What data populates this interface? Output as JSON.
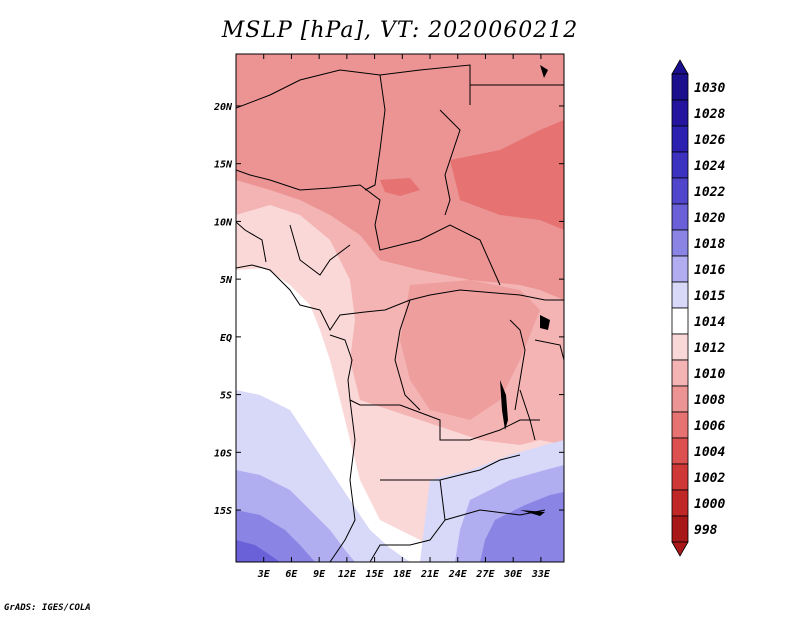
{
  "title": "MSLP [hPa], VT: 2020060212",
  "credit": "GrADS: IGES/COLA",
  "map": {
    "lon_range": [
      0,
      35.5
    ],
    "lat_range": [
      -19.5,
      24.5
    ],
    "lon_ticks": [
      {
        "value": 3,
        "label": "3E"
      },
      {
        "value": 6,
        "label": "6E"
      },
      {
        "value": 9,
        "label": "9E"
      },
      {
        "value": 12,
        "label": "12E"
      },
      {
        "value": 15,
        "label": "15E"
      },
      {
        "value": 18,
        "label": "18E"
      },
      {
        "value": 21,
        "label": "21E"
      },
      {
        "value": 24,
        "label": "24E"
      },
      {
        "value": 27,
        "label": "27E"
      },
      {
        "value": 30,
        "label": "30E"
      },
      {
        "value": 33,
        "label": "33E"
      }
    ],
    "lat_ticks": [
      {
        "value": 20,
        "label": "20N"
      },
      {
        "value": 15,
        "label": "15N"
      },
      {
        "value": 10,
        "label": "10N"
      },
      {
        "value": 5,
        "label": "5N"
      },
      {
        "value": 0,
        "label": "EQ"
      },
      {
        "value": -5,
        "label": "5S"
      },
      {
        "value": -10,
        "label": "10S"
      },
      {
        "value": -15,
        "label": "15S"
      }
    ]
  },
  "colorbar": {
    "levels": [
      {
        "label": "1030",
        "color": "#1a0f8c"
      },
      {
        "label": "1028",
        "color": "#24149e"
      },
      {
        "label": "1026",
        "color": "#2c20b0"
      },
      {
        "label": "1024",
        "color": "#3b32c0"
      },
      {
        "label": "1022",
        "color": "#5046cc"
      },
      {
        "label": "1020",
        "color": "#6a60d8"
      },
      {
        "label": "1018",
        "color": "#8a84e4"
      },
      {
        "label": "1016",
        "color": "#b0aef0"
      },
      {
        "label": "1015",
        "color": "#d8d8f8"
      },
      {
        "label": "1014",
        "color": "#ffffff"
      },
      {
        "label": "1012",
        "color": "#fbd8d8"
      },
      {
        "label": "1010",
        "color": "#f4b4b4"
      },
      {
        "label": "1008",
        "color": "#ec9494"
      },
      {
        "label": "1006",
        "color": "#e67272"
      },
      {
        "label": "1004",
        "color": "#dc5050"
      },
      {
        "label": "1002",
        "color": "#d03838"
      },
      {
        "label": "1000",
        "color": "#c02828"
      },
      {
        "label": "998",
        "color": "#a81818"
      }
    ],
    "top_cap_color": "#1a0f8c",
    "bottom_cap_color": "#a81818"
  }
}
